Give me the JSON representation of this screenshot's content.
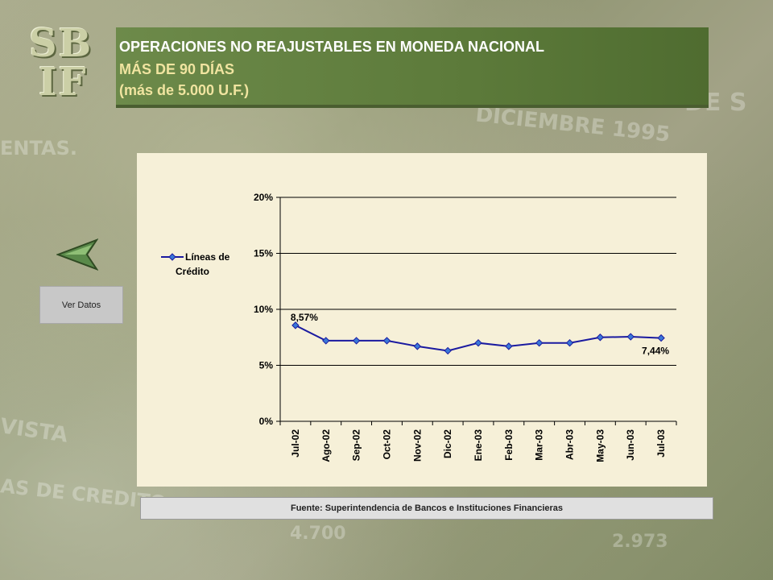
{
  "logo": {
    "text": "SBIF",
    "line1": "SB",
    "line2": "IF"
  },
  "header": {
    "title": "OPERACIONES NO REAJUSTABLES EN MONEDA NACIONAL",
    "subtitle": "MÁS DE 90 DÍAS",
    "note": "(más de 5.000 U.F.)"
  },
  "nav": {
    "back_icon": "back-arrow-icon",
    "ver_datos_label": "Ver Datos"
  },
  "source": "Fuente: Superintendencia de Bancos e Instituciones Financieras",
  "colors": {
    "header_bg": "#5c7a3a",
    "series": "#1a1aa0",
    "marker": "#3a78d8",
    "chart_bg": "#f6f0d8"
  },
  "chart_data": {
    "type": "line",
    "title": "",
    "xlabel": "",
    "ylabel": "",
    "categories": [
      "Jul-02",
      "Ago-02",
      "Sep-02",
      "Oct-02",
      "Nov-02",
      "Dic-02",
      "Ene-03",
      "Feb-03",
      "Mar-03",
      "Abr-03",
      "May-03",
      "Jun-03",
      "Jul-03"
    ],
    "series": [
      {
        "name": "Líneas de Crédito",
        "values": [
          8.57,
          7.2,
          7.2,
          7.2,
          6.7,
          6.3,
          7.0,
          6.7,
          7.0,
          7.0,
          7.5,
          7.55,
          7.44
        ]
      }
    ],
    "ylim": [
      0,
      20
    ],
    "yticks": [
      "0%",
      "5%",
      "10%",
      "15%",
      "20%"
    ],
    "ytick_values": [
      0,
      5,
      10,
      15,
      20
    ],
    "annotations": [
      {
        "index": 0,
        "text": "8,57%"
      },
      {
        "index": 12,
        "text": "7,44%"
      }
    ],
    "legend": {
      "position": "left",
      "line1": "Líneas de",
      "line2": "Crédito"
    },
    "grid": true
  }
}
